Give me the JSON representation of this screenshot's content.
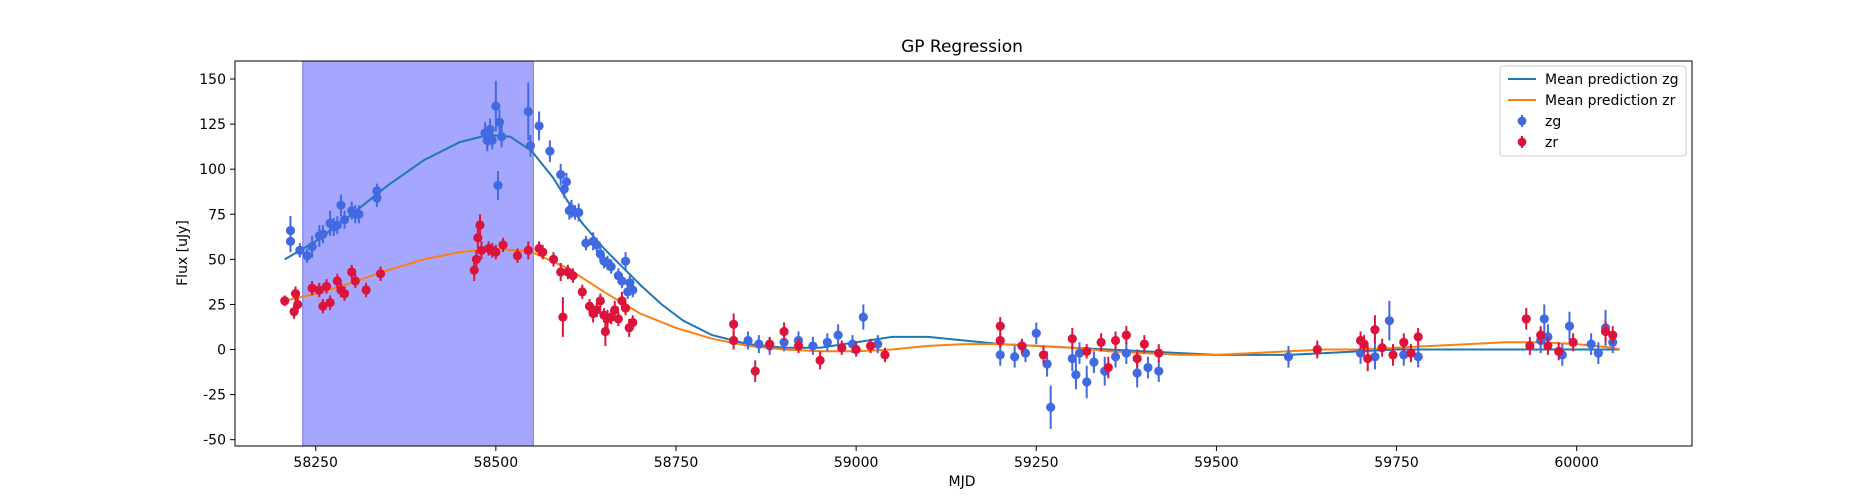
{
  "chart_data": {
    "type": "scatter",
    "title": "GP Regression",
    "xlabel": "MJD",
    "ylabel": "Flux [uJy]",
    "xlim": [
      58138,
      60160
    ],
    "ylim": [
      -53.5,
      160
    ],
    "xticks": [
      58250,
      58500,
      58750,
      59000,
      59250,
      59500,
      59750,
      60000
    ],
    "yticks": [
      -50,
      -25,
      0,
      25,
      50,
      75,
      100,
      125,
      150
    ],
    "grid": false,
    "legend": {
      "position": "top-right",
      "entries": [
        "Mean prediction zg",
        "Mean prediction zr",
        "zg",
        "zr"
      ]
    },
    "shaded_region": {
      "x": [
        58232,
        58552
      ],
      "color": "#a5a7ff"
    },
    "lines": [
      {
        "name": "Mean prediction zg",
        "color": "#1f77b4",
        "x": [
          58207,
          58250,
          58300,
          58350,
          58400,
          58450,
          58490,
          58520,
          58550,
          58580,
          58600,
          58620,
          58650,
          58680,
          58700,
          58730,
          58760,
          58800,
          58850,
          58900,
          58950,
          59000,
          59050,
          59100,
          59150,
          59200,
          59250,
          59300,
          59350,
          59400,
          59450,
          59500,
          59550,
          59600,
          59650,
          59700,
          59750,
          59800,
          59850,
          59900,
          59950,
          60000,
          60050,
          60060
        ],
        "y": [
          50,
          60,
          75,
          91,
          105,
          115,
          119,
          118,
          110,
          95,
          82,
          70,
          56,
          44,
          36,
          25,
          16,
          8,
          3,
          1,
          1,
          4,
          7,
          7,
          5,
          3,
          2,
          1,
          0,
          -1,
          -2,
          -3,
          -3,
          -3,
          -2,
          -1,
          0,
          0,
          0,
          0,
          0,
          0,
          0,
          0
        ]
      },
      {
        "name": "Mean prediction zr",
        "color": "#ff7f0e",
        "x": [
          58207,
          58250,
          58300,
          58350,
          58400,
          58450,
          58500,
          58550,
          58600,
          58650,
          58700,
          58750,
          58800,
          58850,
          58900,
          58950,
          59000,
          59050,
          59100,
          59150,
          59200,
          59250,
          59300,
          59350,
          59400,
          59450,
          59500,
          59550,
          59600,
          59650,
          59700,
          59750,
          59800,
          59850,
          59900,
          59950,
          60000,
          60050,
          60060
        ],
        "y": [
          27,
          31,
          37,
          44,
          50,
          54,
          56,
          54,
          45,
          32,
          20,
          12,
          6,
          2,
          0,
          -1,
          -1,
          0,
          2,
          3,
          3,
          2,
          1,
          -1,
          -2,
          -3,
          -3,
          -2,
          -1,
          0,
          0,
          1,
          2,
          3,
          4,
          4,
          3,
          1,
          0
        ]
      }
    ],
    "series": [
      {
        "name": "zg",
        "color": "#4169e1",
        "x": [
          58215,
          58215,
          58228,
          58238,
          58245,
          58255,
          58260,
          58270,
          58275,
          58280,
          58285,
          58290,
          58300,
          58305,
          58310,
          58335,
          58335,
          58485,
          58488,
          58490,
          58492,
          58495,
          58500,
          58503,
          58505,
          58508,
          58545,
          58548,
          58560,
          58575,
          58590,
          58595,
          58598,
          58602,
          58605,
          58610,
          58615,
          58625,
          58635,
          58640,
          58645,
          58650,
          58655,
          58660,
          58670,
          58675,
          58680,
          58683,
          58686,
          58690,
          58850,
          58865,
          58880,
          58900,
          58920,
          58940,
          58960,
          58975,
          58995,
          59010,
          59030,
          59200,
          59220,
          59235,
          59250,
          59265,
          59270,
          59300,
          59305,
          59310,
          59320,
          59330,
          59345,
          59360,
          59375,
          59390,
          59405,
          59420,
          59600,
          59700,
          59720,
          59740,
          59760,
          59780,
          59950,
          59955,
          59960,
          59980,
          59990,
          60020,
          60030,
          60040,
          60050
        ],
        "y": [
          66,
          60,
          55,
          52,
          57,
          63,
          64,
          70,
          68,
          69,
          80,
          72,
          77,
          75,
          75,
          84,
          88,
          120,
          116,
          118,
          122,
          116,
          135,
          91,
          126,
          118,
          132,
          113,
          124,
          110,
          97,
          89,
          93,
          77,
          78,
          76,
          76,
          59,
          60,
          58,
          53,
          49,
          48,
          46,
          41,
          38,
          49,
          32,
          37,
          33,
          5,
          3,
          2,
          4,
          5,
          2,
          4,
          8,
          3,
          18,
          3,
          -3,
          -4,
          -2,
          9,
          -8,
          -32,
          -5,
          -14,
          -2,
          -18,
          -7,
          -12,
          -4,
          -2,
          -13,
          -10,
          -12,
          -4,
          -2,
          -4,
          16,
          -3,
          -4,
          5,
          17,
          7,
          -3,
          13,
          3,
          -2,
          12,
          4
        ],
        "yerr": [
          8,
          6,
          4,
          4,
          6,
          6,
          5,
          7,
          5,
          5,
          6,
          5,
          5,
          5,
          5,
          5,
          4,
          6,
          6,
          5,
          6,
          5,
          14,
          8,
          7,
          6,
          16,
          6,
          8,
          6,
          6,
          5,
          5,
          5,
          5,
          4,
          5,
          4,
          5,
          4,
          4,
          4,
          4,
          4,
          4,
          4,
          5,
          4,
          4,
          4,
          5,
          5,
          5,
          5,
          5,
          5,
          5,
          6,
          5,
          7,
          5,
          6,
          6,
          5,
          6,
          7,
          12,
          7,
          8,
          6,
          9,
          6,
          8,
          6,
          6,
          8,
          6,
          6,
          6,
          6,
          7,
          11,
          6,
          6,
          7,
          8,
          7,
          6,
          8,
          6,
          6,
          10,
          6
        ]
      },
      {
        "name": "zr",
        "color": "#dc143c",
        "x": [
          58207,
          58220,
          58222,
          58225,
          58245,
          58255,
          58260,
          58265,
          58270,
          58280,
          58285,
          58290,
          58300,
          58305,
          58320,
          58340,
          58470,
          58473,
          58475,
          58478,
          58480,
          58490,
          58495,
          58500,
          58510,
          58530,
          58545,
          58560,
          58565,
          58580,
          58590,
          58593,
          58600,
          58607,
          58620,
          58630,
          58635,
          58640,
          58645,
          58650,
          58652,
          58655,
          58660,
          58665,
          58670,
          58675,
          58680,
          58685,
          58690,
          58830,
          58830,
          58860,
          58880,
          58900,
          58920,
          58950,
          58980,
          59000,
          59020,
          59040,
          59200,
          59200,
          59230,
          59260,
          59300,
          59320,
          59340,
          59350,
          59360,
          59375,
          59390,
          59400,
          59420,
          59640,
          59700,
          59705,
          59710,
          59720,
          59730,
          59745,
          59760,
          59770,
          59780,
          59930,
          59935,
          59950,
          59960,
          59975,
          59995,
          60040,
          60050
        ],
        "y": [
          27,
          21,
          31,
          25,
          34,
          33,
          24,
          35,
          26,
          38,
          33,
          31,
          43,
          38,
          33,
          42,
          44,
          50,
          62,
          69,
          55,
          56,
          55,
          54,
          58,
          52,
          55,
          56,
          54,
          50,
          43,
          18,
          43,
          41,
          32,
          24,
          20,
          22,
          27,
          19,
          10,
          17,
          18,
          22,
          17,
          27,
          23,
          12,
          15,
          14,
          5,
          -12,
          3,
          10,
          2,
          -6,
          1,
          0,
          2,
          -3,
          13,
          5,
          2,
          -3,
          6,
          -1,
          4,
          -10,
          5,
          8,
          -5,
          3,
          -2,
          0,
          5,
          3,
          -5,
          11,
          1,
          -3,
          4,
          -2,
          7,
          17,
          2,
          8,
          2,
          -1,
          4,
          10,
          8
        ],
        "yerr": [
          3,
          4,
          4,
          4,
          4,
          4,
          4,
          4,
          4,
          4,
          4,
          4,
          4,
          4,
          4,
          4,
          6,
          5,
          6,
          6,
          5,
          4,
          4,
          4,
          4,
          4,
          5,
          4,
          4,
          4,
          5,
          11,
          4,
          4,
          4,
          4,
          5,
          4,
          4,
          4,
          8,
          5,
          4,
          5,
          4,
          5,
          4,
          5,
          4,
          6,
          5,
          6,
          4,
          5,
          4,
          5,
          4,
          4,
          4,
          4,
          5,
          4,
          4,
          5,
          6,
          4,
          5,
          6,
          5,
          5,
          5,
          5,
          5,
          5,
          5,
          5,
          7,
          8,
          5,
          6,
          5,
          5,
          5,
          6,
          5,
          5,
          5,
          5,
          5,
          6,
          5
        ]
      }
    ]
  }
}
